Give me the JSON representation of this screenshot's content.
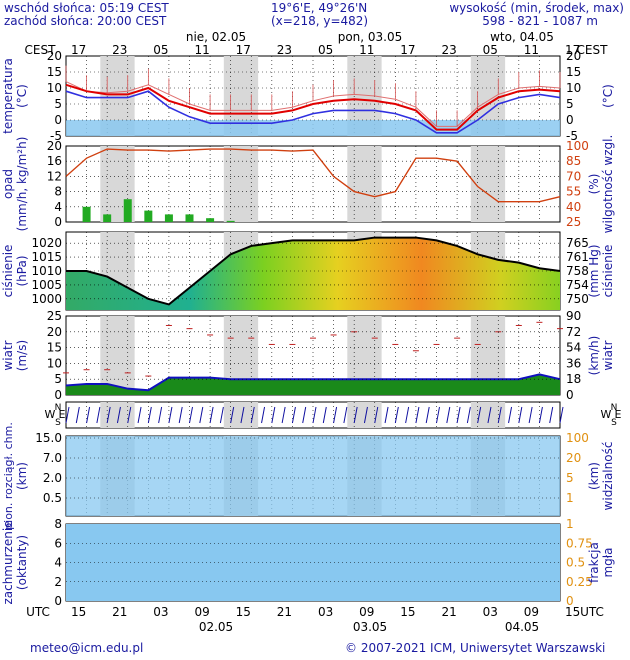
{
  "header": {
    "sunrise": "wschód słońca: 05:19 CEST",
    "sunset": "zachód słońca: 20:00 CEST",
    "coords": "19°6'E, 49°26'N",
    "grid": "(x=218, y=482)",
    "elev_label": "wysokość (min, środek, max)",
    "elev_values": "598 - 821 - 1087 m"
  },
  "top_axis": {
    "tz": "CEST",
    "hours": [
      "17",
      "23",
      "05",
      "11",
      "17",
      "23",
      "05",
      "11",
      "17",
      "23",
      "05",
      "11",
      "17"
    ],
    "days": [
      "nie, 02.05",
      "pon, 03.05",
      "wto, 04.05"
    ]
  },
  "bottom_axis": {
    "tz": "UTC",
    "hours": [
      "15",
      "21",
      "03",
      "09",
      "15",
      "21",
      "03",
      "09",
      "15",
      "21",
      "03",
      "09",
      "15"
    ],
    "dates": [
      "02.05",
      "03.05",
      "04.05"
    ]
  },
  "footer": {
    "email": "meteo@icm.edu.pl",
    "copyright": "© 2007-2021 ICM, Uniwersytet Warszawski"
  },
  "panels": {
    "temperature": {
      "left_label": "temperatura",
      "left_unit": "(°C)",
      "right_label": "",
      "right_unit": "(°C)",
      "ticks": [
        "20",
        "15",
        "10",
        "5",
        "0",
        "-5"
      ]
    },
    "precip": {
      "left_label": "opad",
      "left_unit": "(mm/h, kg/m²h)",
      "right_label": "wilgotność wzgl.",
      "right_unit": "(%)",
      "left_ticks": [
        "20",
        "16",
        "12",
        "8",
        "4",
        "0"
      ],
      "right_ticks": [
        "100",
        "85",
        "70",
        "55",
        "40",
        "25"
      ]
    },
    "pressure": {
      "left_label": "ciśnienie",
      "left_unit": "(hPa)",
      "right_label": "ciśnienie",
      "right_unit": "(mm Hg)",
      "left_ticks": [
        "1020",
        "1015",
        "1010",
        "1005",
        "1000"
      ],
      "right_ticks": [
        "765",
        "761",
        "758",
        "754",
        "750"
      ]
    },
    "wind": {
      "left_label": "wiatr",
      "left_unit": "(m/s)",
      "right_label": "wiatr",
      "right_unit": "(km/h)",
      "left_ticks": [
        "25",
        "20",
        "15",
        "10",
        "5",
        "0"
      ],
      "right_ticks": [
        "90",
        "72",
        "54",
        "36",
        "18",
        "0"
      ]
    },
    "compass": {
      "w": "W",
      "e": "E",
      "n": "N",
      "s": "S"
    },
    "visibility": {
      "left_label": "pion. rozciągł. chm.",
      "left_unit": "(km)",
      "right_label": "widzialność",
      "right_unit": "(km)",
      "left_ticks": [
        "15.0",
        "7.0",
        "2.0",
        "0.5"
      ],
      "right_ticks": [
        "100",
        "20",
        "5",
        "1"
      ]
    },
    "clouds": {
      "left_label": "zachmurzenie",
      "left_unit": "(oktanty)",
      "right_label": "frakcja",
      "right_unit": "mgła",
      "left_ticks": [
        "8",
        "6",
        "4",
        "2",
        "0"
      ],
      "right_ticks": [
        "1",
        "0.75",
        "0.5",
        "0.25",
        "0"
      ]
    }
  },
  "chart_data": {
    "type": "line",
    "x_hours_utc_from_start": [
      0,
      3,
      6,
      9,
      12,
      15,
      18,
      21,
      24,
      27,
      30,
      33,
      36,
      39,
      42,
      45,
      48,
      51,
      54,
      57,
      60,
      63,
      66,
      69,
      72
    ],
    "temperature_c": {
      "max": [
        12,
        9,
        8.5,
        9,
        11,
        8,
        5,
        3,
        3,
        3,
        3,
        4,
        6,
        7.5,
        8,
        7.5,
        6.5,
        4,
        -2,
        -2,
        4,
        8,
        10,
        10.5,
        10
      ],
      "mid": [
        11,
        9,
        8,
        8,
        10,
        6,
        4,
        2,
        2,
        2,
        2,
        3,
        5,
        6,
        6.5,
        6,
        5,
        3,
        -3,
        -3,
        3,
        7,
        9,
        9.5,
        9
      ],
      "min": [
        9,
        7,
        7,
        7,
        9,
        4,
        1,
        -1,
        -1,
        -1,
        -1,
        0,
        2,
        3,
        3,
        3,
        2,
        0,
        -4,
        -4,
        0,
        5,
        7,
        8,
        7
      ]
    },
    "relative_humidity_pct": [
      70,
      88,
      97,
      96,
      96,
      95,
      96,
      97,
      97,
      96,
      96,
      95,
      96,
      70,
      55,
      50,
      55,
      88,
      88,
      85,
      60,
      45,
      45,
      45,
      50
    ],
    "precipitation_mm_h": [
      0,
      4,
      2,
      6,
      3,
      2,
      2,
      1,
      0.3,
      0,
      0,
      0,
      0,
      0,
      0,
      0,
      0,
      0,
      0,
      0,
      0,
      0,
      0,
      0,
      0
    ],
    "pressure_hpa": [
      1010,
      1010,
      1008,
      1004,
      1000,
      998,
      1004,
      1010,
      1016,
      1019,
      1020,
      1021,
      1021,
      1021,
      1021,
      1022,
      1022,
      1022,
      1021,
      1019,
      1016,
      1014,
      1013,
      1011,
      1010
    ],
    "wind_ms": [
      3,
      3.5,
      3.5,
      2,
      1.5,
      5.5,
      5.5,
      5.5,
      5,
      5,
      5,
      5,
      5,
      5,
      5,
      5,
      5,
      5,
      5,
      5,
      5,
      5,
      5,
      6.5,
      5
    ],
    "gust_ms": [
      7,
      8,
      8,
      7,
      6,
      22,
      21,
      19,
      18,
      18,
      16,
      16,
      18,
      19,
      20,
      18,
      16,
      14,
      16,
      18,
      16,
      20,
      22,
      23,
      21
    ]
  }
}
